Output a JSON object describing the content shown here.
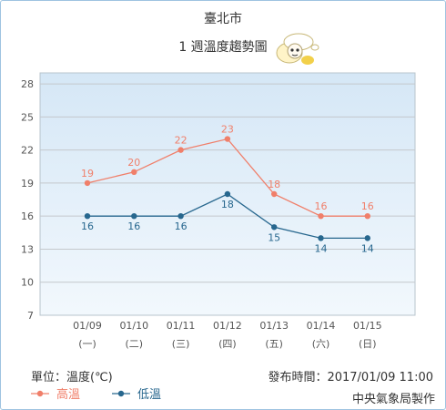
{
  "header": {
    "location": "臺北市",
    "subtitle": "1 週溫度趨勢圖"
  },
  "mascot": {
    "icon": "weather-mascot-icon"
  },
  "footer": {
    "unit_label": "單位：溫度(℃)",
    "publish_label": "發布時間：2017/01/09 11:00",
    "agency": "中央氣象局製作"
  },
  "chart_data": {
    "type": "line",
    "categories": [
      "01/09",
      "01/10",
      "01/11",
      "01/12",
      "01/13",
      "01/14",
      "01/15"
    ],
    "weekdays": [
      "(一)",
      "(二)",
      "(三)",
      "(四)",
      "(五)",
      "(六)",
      "(日)"
    ],
    "series": [
      {
        "name": "高溫",
        "values": [
          19,
          20,
          22,
          23,
          18,
          16,
          16
        ],
        "color": "#f07f6a"
      },
      {
        "name": "低溫",
        "values": [
          16,
          16,
          16,
          18,
          15,
          14,
          14
        ],
        "color": "#27678e"
      }
    ],
    "ylim": [
      7,
      29
    ],
    "yticks": [
      7,
      10,
      13,
      16,
      19,
      22,
      25,
      28
    ],
    "grid": true,
    "legend": "bottom-left"
  }
}
